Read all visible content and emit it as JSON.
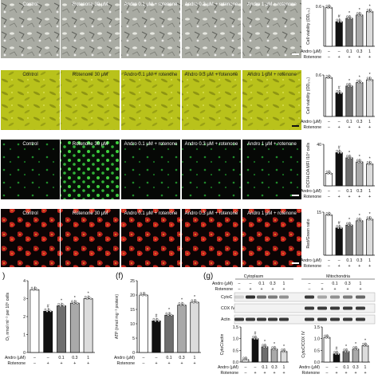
{
  "image_columns": [
    "Control",
    "Rotenone 30 μM",
    "Andro 0.1 μM + rotenone",
    "Andro 0.3 μM + rotenone",
    "Andro 1 μM + rotenone"
  ],
  "treatment_rows": {
    "andro_label": "Andro (μM)",
    "andro_values": [
      "–",
      "–",
      "0.1",
      "0.3",
      "1"
    ],
    "rotenone_label": "Rotenone",
    "rotenone_values": [
      "–",
      "+",
      "+",
      "+",
      "+"
    ]
  },
  "significance_marks": {
    "vs_control": "#",
    "vs_rotenone": "*"
  },
  "panel_letters": {
    "f": "(f)",
    "g": "(g)",
    "e_partial": ")"
  },
  "panel_g": {
    "fraction_labels": [
      "Cytoplasm",
      "Mitochondria"
    ],
    "blot_labels": [
      "CytoC",
      "COX IV",
      "Actin"
    ],
    "andro_label": "Andro (μM)",
    "andro_values": [
      "–",
      "–",
      "0.1",
      "0.3",
      "1"
    ],
    "rotenone_label": "Rotenone",
    "rotenone_values": [
      "–",
      "+",
      "+",
      "+",
      "+"
    ]
  },
  "chart_data": [
    {
      "panel": "a",
      "type": "bar",
      "ylabel": "Cell viability (OD₅₇₀)",
      "categories": [
        "Control",
        "Rotenone",
        "Andro 0.1",
        "Andro 0.3",
        "Andro 1"
      ],
      "values": [
        0.58,
        0.37,
        0.42,
        0.47,
        0.52
      ],
      "ylim": [
        0,
        0.6
      ],
      "yticks": [
        "0.6"
      ],
      "colors": [
        "#ffffff",
        "#111111",
        "#6e6e6e",
        "#a9a9a9",
        "#dcdcdc"
      ]
    },
    {
      "panel": "b",
      "type": "bar",
      "ylabel": "Cell viability (OD₅₇₀)",
      "categories": [
        "Control",
        "Rotenone",
        "Andro 0.1",
        "Andro 0.3",
        "Andro 1"
      ],
      "values": [
        0.56,
        0.34,
        0.44,
        0.49,
        0.53
      ],
      "ylim": [
        0,
        0.6
      ],
      "yticks": [
        "0.6"
      ],
      "colors": [
        "#ffffff",
        "#111111",
        "#6e6e6e",
        "#a9a9a9",
        "#dcdcdc"
      ]
    },
    {
      "panel": "c",
      "type": "bar",
      "ylabel": "DCFH-DA MFI /10⁴ cells",
      "categories": [
        "Control",
        "Rotenone",
        "Andro 0.1",
        "Andro 0.3",
        "Andro 1"
      ],
      "values": [
        12,
        32,
        27,
        23,
        21
      ],
      "ylim": [
        0,
        40
      ],
      "yticks": [
        "40"
      ],
      "colors": [
        "#ffffff",
        "#111111",
        "#6e6e6e",
        "#a9a9a9",
        "#dcdcdc"
      ]
    },
    {
      "panel": "d",
      "type": "bar",
      "ylabel": "Red/Green ratio",
      "categories": [
        "Control",
        "Rotenone",
        "Andro 0.1",
        "Andro 0.3",
        "Andro 1"
      ],
      "values": [
        14,
        9.5,
        10.5,
        12,
        12.5
      ],
      "ylim": [
        0,
        15
      ],
      "yticks": [
        "15"
      ],
      "colors": [
        "#ffffff",
        "#111111",
        "#6e6e6e",
        "#a9a9a9",
        "#dcdcdc"
      ]
    },
    {
      "panel": "e",
      "type": "bar",
      "ylabel": "O₂ nmol ml⁻¹ per 10⁶ cells",
      "categories": [
        "Control",
        "Rotenone",
        "Andro 0.1",
        "Andro 0.3",
        "Andro 1"
      ],
      "values": [
        3.5,
        2.3,
        2.6,
        2.75,
        3.0
      ],
      "ylim": [
        0,
        4
      ],
      "yticks": [
        "0",
        "1",
        "2",
        "3",
        "4"
      ],
      "colors": [
        "#ffffff",
        "#111111",
        "#6e6e6e",
        "#a9a9a9",
        "#dcdcdc"
      ]
    },
    {
      "panel": "f",
      "type": "bar",
      "ylabel": "ATP (nmol mg⁻¹ protein)",
      "categories": [
        "Control",
        "Rotenone",
        "Andro 0.1",
        "Andro 0.3",
        "Andro 1"
      ],
      "values": [
        20,
        11,
        13,
        16.5,
        17.5
      ],
      "ylim": [
        0,
        25
      ],
      "yticks": [
        "0",
        "5",
        "10",
        "15",
        "20",
        "25"
      ],
      "colors": [
        "#ffffff",
        "#111111",
        "#6e6e6e",
        "#a9a9a9",
        "#dcdcdc"
      ]
    },
    {
      "panel": "g-left",
      "type": "bar",
      "ylabel": "CytoC/actin",
      "categories": [
        "Control",
        "Rotenone",
        "Andro 0.1",
        "Andro 0.3",
        "Andro 1"
      ],
      "values": [
        0.1,
        1.0,
        0.65,
        0.55,
        0.45
      ],
      "ylim": [
        0,
        1.5
      ],
      "yticks": [
        "0.0",
        "0.5",
        "1.0",
        "1.5"
      ],
      "colors": [
        "#ffffff",
        "#111111",
        "#6e6e6e",
        "#a9a9a9",
        "#dcdcdc"
      ]
    },
    {
      "panel": "g-right",
      "type": "bar",
      "ylabel": "CytoC/COX IV",
      "categories": [
        "Control",
        "Rotenone",
        "Andro 0.1",
        "Andro 0.3",
        "Andro 1"
      ],
      "values": [
        1.05,
        0.35,
        0.45,
        0.55,
        0.7
      ],
      "ylim": [
        0,
        1.5
      ],
      "yticks": [
        "0.0",
        "0.5",
        "1.0",
        "1.5"
      ],
      "colors": [
        "#ffffff",
        "#111111",
        "#6e6e6e",
        "#a9a9a9",
        "#dcdcdc"
      ]
    }
  ]
}
